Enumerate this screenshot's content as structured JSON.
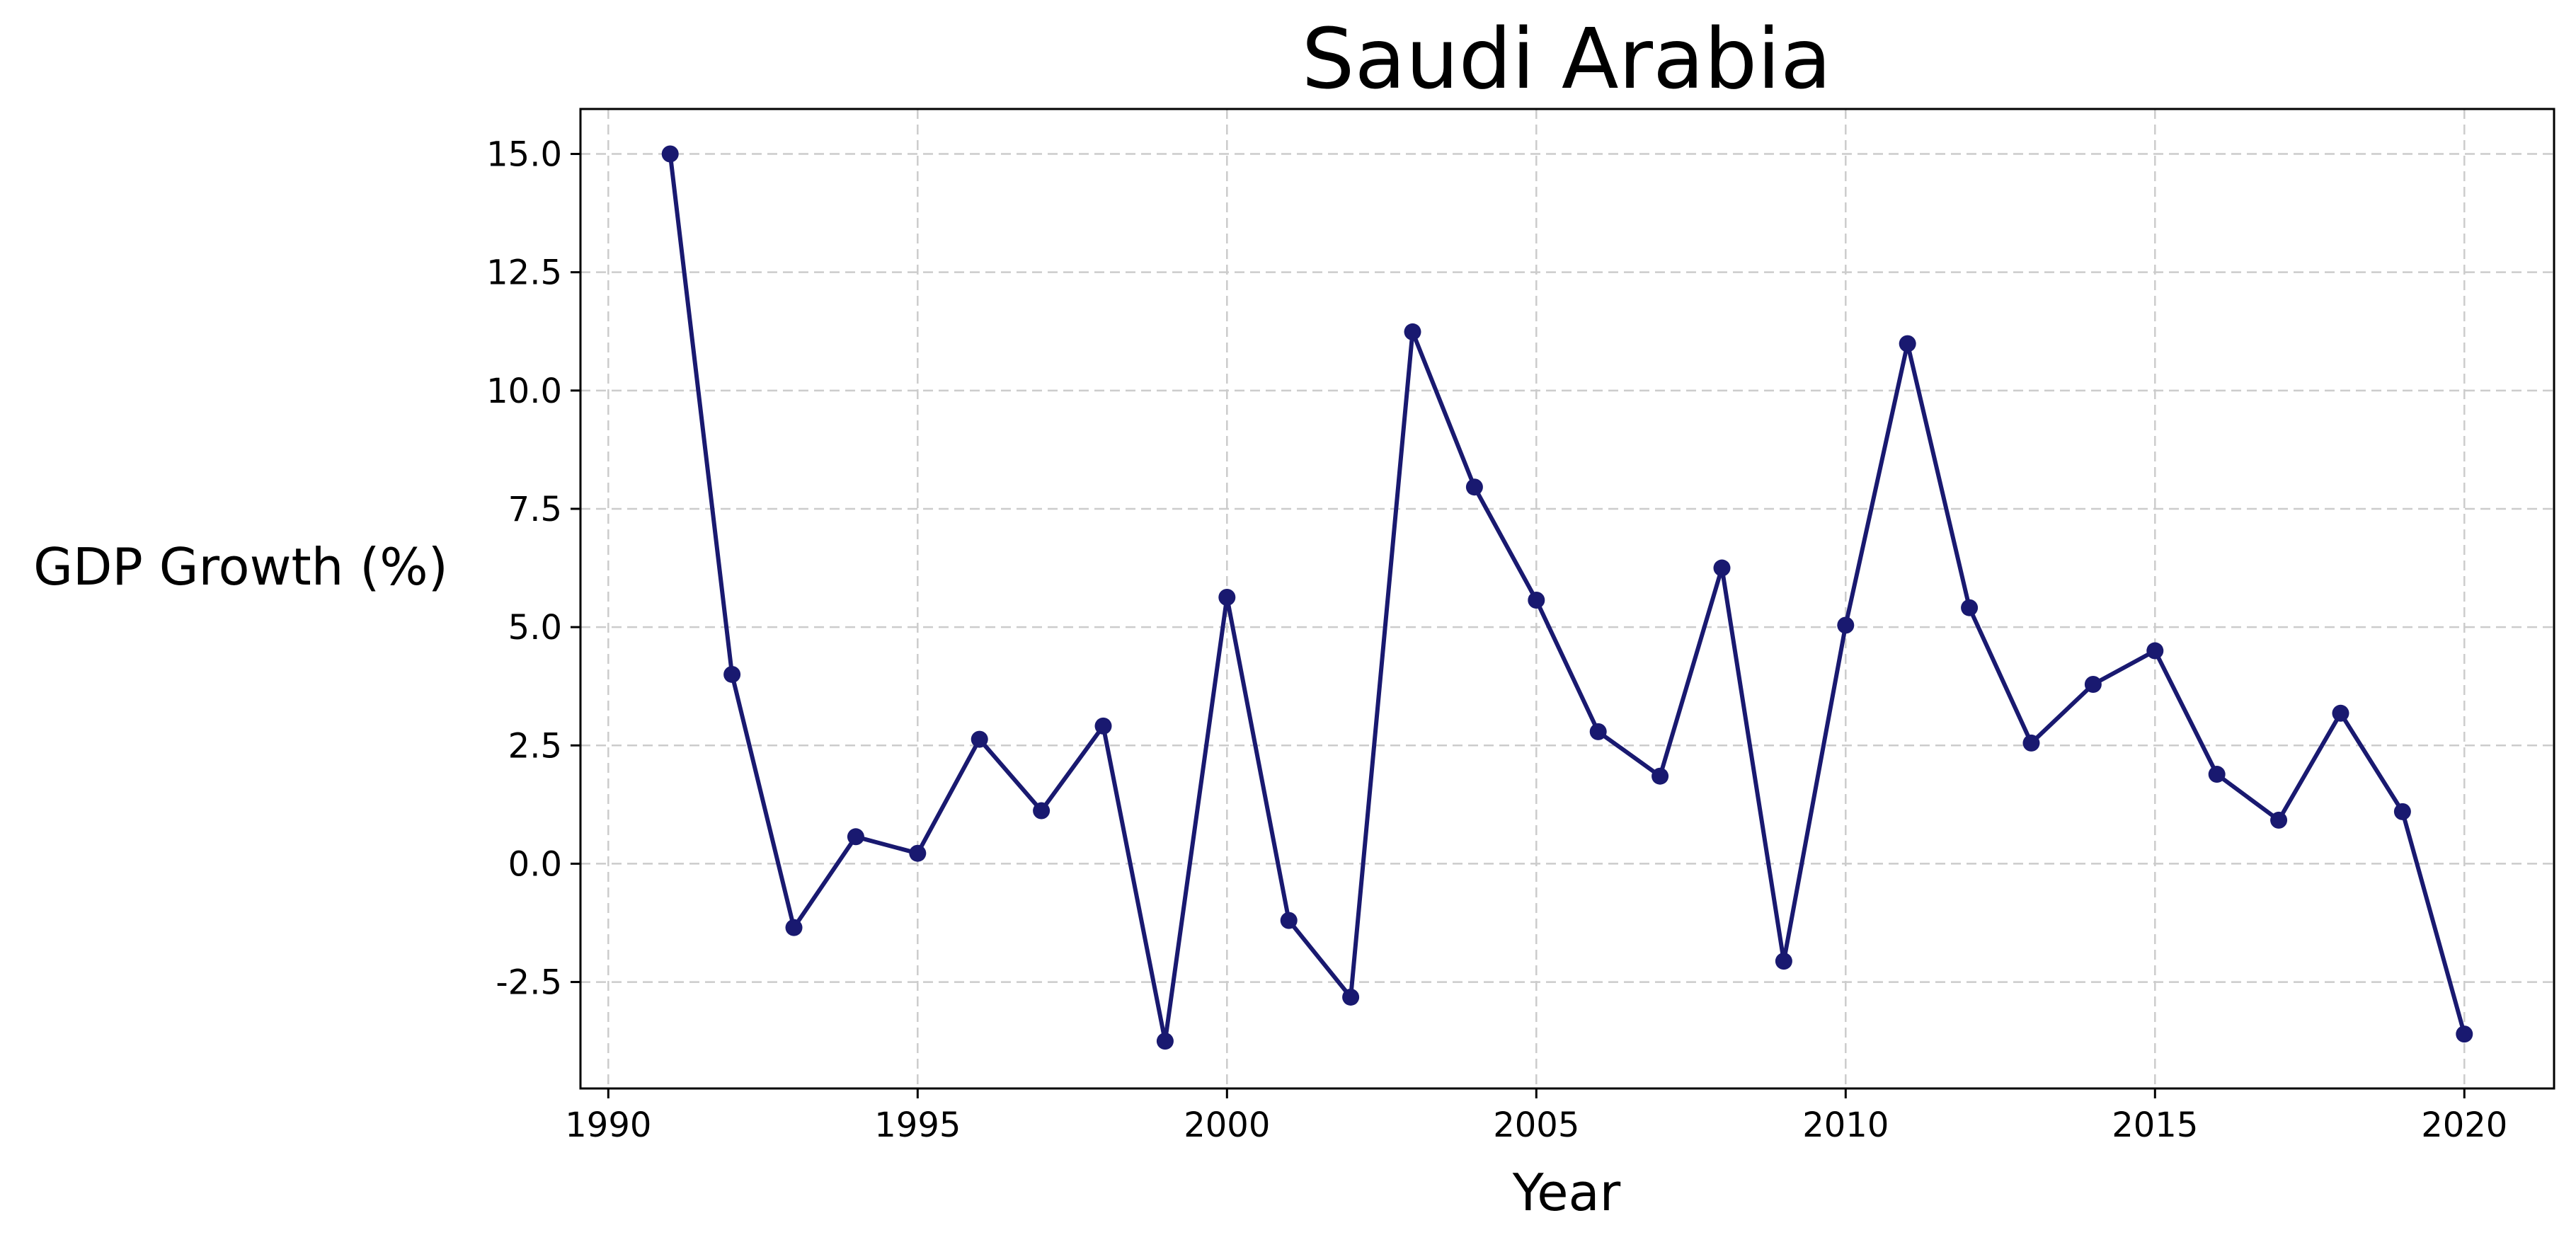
{
  "chart_data": {
    "type": "line",
    "title": "Saudi Arabia",
    "xlabel": "Year",
    "ylabel": "GDP Growth (%)",
    "xlim": [
      1989.55,
      2021.45
    ],
    "ylim": [
      -4.75,
      15.95
    ],
    "grid": true,
    "x_ticks": [
      1990,
      1995,
      2000,
      2005,
      2010,
      2015,
      2020
    ],
    "x_tick_labels": [
      "1990",
      "1995",
      "2000",
      "2005",
      "2010",
      "2015",
      "2020"
    ],
    "y_ticks": [
      -2.5,
      0.0,
      2.5,
      5.0,
      7.5,
      10.0,
      12.5,
      15.0
    ],
    "y_tick_labels": [
      "-2.5",
      "0.0",
      "2.5",
      "5.0",
      "7.5",
      "10.0",
      "12.5",
      "15.0"
    ],
    "colors": {
      "line": "#191970",
      "marker": "#191970",
      "grid": "#cccccc"
    },
    "series": [
      {
        "x": [
          1991,
          1992,
          1993,
          1994,
          1995,
          1996,
          1997,
          1998,
          1999,
          2000,
          2001,
          2002,
          2003,
          2004,
          2005,
          2006,
          2007,
          2008,
          2009,
          2010,
          2011,
          2012,
          2013,
          2014,
          2015,
          2016,
          2017,
          2018,
          2019,
          2020
        ],
        "values": [
          15.0,
          4.0,
          -1.35,
          0.57,
          0.22,
          2.63,
          1.12,
          2.91,
          -3.75,
          5.63,
          -1.2,
          -2.82,
          11.24,
          7.96,
          5.57,
          2.79,
          1.85,
          6.25,
          -2.06,
          5.04,
          10.99,
          5.41,
          2.55,
          3.79,
          4.5,
          1.89,
          0.92,
          3.18,
          1.1,
          -3.6
        ]
      }
    ]
  }
}
